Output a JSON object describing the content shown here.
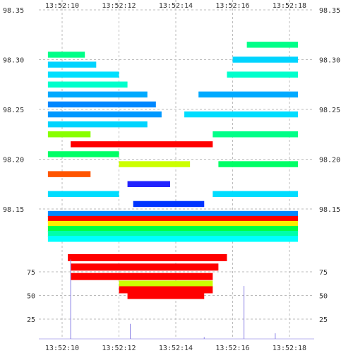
{
  "chart_data": {
    "type": "heatmap",
    "title": "",
    "xlabel": "",
    "ylabel": "",
    "x_ticks": [
      "13:52:10",
      "13:52:12",
      "13:52:14",
      "13:52:16",
      "13:52:18"
    ],
    "y_ticks_price": [
      "98.35",
      "98.30",
      "98.25",
      "98.20",
      "98.15"
    ],
    "y_ticks_volume": [
      "75",
      "50",
      "25"
    ],
    "grid": true,
    "price_range": [
      98.1,
      98.35
    ],
    "volume_range": [
      0,
      100
    ],
    "colors": {
      "grid": "#bbbbbb",
      "trade_line": "#8a82e6",
      "sell_side": "#ff0000",
      "level_palette": [
        "#00b8ff",
        "#00e5ff",
        "#00ffcc",
        "#00ff70",
        "#66ff00",
        "#ccff00",
        "#ffff00",
        "#ffaa00",
        "#ff5500",
        "#ff0000",
        "#3333ff",
        "#9900ff"
      ]
    },
    "heatmap_bands": [
      {
        "price": 98.305,
        "start": "13:52:09.5",
        "end": "13:52:10.8",
        "color": "#00ff88"
      },
      {
        "price": 98.295,
        "start": "13:52:09.5",
        "end": "13:52:11.2",
        "color": "#00d4ff"
      },
      {
        "price": 98.285,
        "start": "13:52:09.5",
        "end": "13:52:12.0",
        "color": "#00e0ff"
      },
      {
        "price": 98.275,
        "start": "13:52:09.5",
        "end": "13:52:12.3",
        "color": "#00ffcc"
      },
      {
        "price": 98.265,
        "start": "13:52:09.5",
        "end": "13:52:13.0",
        "color": "#00aaff"
      },
      {
        "price": 98.255,
        "start": "13:52:09.5",
        "end": "13:52:13.3",
        "color": "#0088ff"
      },
      {
        "price": 98.245,
        "start": "13:52:09.5",
        "end": "13:52:13.5",
        "color": "#0099ff"
      },
      {
        "price": 98.235,
        "start": "13:52:09.5",
        "end": "13:52:13.0",
        "color": "#00d4ff"
      },
      {
        "price": 98.225,
        "start": "13:52:09.5",
        "end": "13:52:11.0",
        "color": "#88ff00"
      },
      {
        "price": 98.215,
        "start": "13:52:10.3",
        "end": "13:52:15.3",
        "color": "#ff0000"
      },
      {
        "price": 98.205,
        "start": "13:52:09.5",
        "end": "13:52:12.0",
        "color": "#00ff66"
      },
      {
        "price": 98.195,
        "start": "13:52:12.0",
        "end": "13:52:14.5",
        "color": "#ccff00"
      },
      {
        "price": 98.185,
        "start": "13:52:09.5",
        "end": "13:52:11.0",
        "color": "#ff5500"
      },
      {
        "price": 98.175,
        "start": "13:52:12.3",
        "end": "13:52:13.8",
        "color": "#2222ff"
      },
      {
        "price": 98.165,
        "start": "13:52:09.5",
        "end": "13:52:12.0",
        "color": "#00ddff"
      },
      {
        "price": 98.155,
        "start": "13:52:12.5",
        "end": "13:52:15.0",
        "color": "#0033ff"
      },
      {
        "price": 98.145,
        "start": "13:52:09.5",
        "end": "13:52:18.3",
        "color": "#0088ff"
      },
      {
        "price": 98.14,
        "start": "13:52:09.5",
        "end": "13:52:18.3",
        "color": "#ff0000"
      },
      {
        "price": 98.135,
        "start": "13:52:09.5",
        "end": "13:52:18.3",
        "color": "#ffee00"
      },
      {
        "price": 98.13,
        "start": "13:52:09.5",
        "end": "13:52:18.3",
        "color": "#00ff44"
      },
      {
        "price": 98.125,
        "start": "13:52:09.5",
        "end": "13:52:18.3",
        "color": "#00ffaa"
      },
      {
        "price": 98.12,
        "start": "13:52:09.5",
        "end": "13:52:18.3",
        "color": "#00ffff"
      },
      {
        "price": 98.315,
        "start": "13:52:16.5",
        "end": "13:52:18.3",
        "color": "#00ff88"
      },
      {
        "price": 98.3,
        "start": "13:52:16.0",
        "end": "13:52:18.3",
        "color": "#00d4ff"
      },
      {
        "price": 98.285,
        "start": "13:52:15.8",
        "end": "13:52:18.3",
        "color": "#00ffcc"
      },
      {
        "price": 98.265,
        "start": "13:52:14.8",
        "end": "13:52:18.3",
        "color": "#00aaff"
      },
      {
        "price": 98.245,
        "start": "13:52:14.3",
        "end": "13:52:18.3",
        "color": "#00ddff"
      },
      {
        "price": 98.225,
        "start": "13:52:15.3",
        "end": "13:52:18.3",
        "color": "#00ff88"
      },
      {
        "price": 98.195,
        "start": "13:52:15.5",
        "end": "13:52:18.3",
        "color": "#00ff66"
      },
      {
        "price": 98.165,
        "start": "13:52:15.3",
        "end": "13:52:18.3",
        "color": "#00ddff"
      }
    ],
    "volume_bars": [
      {
        "volume": 90,
        "start": "13:52:10.2",
        "end": "13:52:15.8",
        "color": "#ff0000"
      },
      {
        "volume": 80,
        "start": "13:52:10.3",
        "end": "13:52:15.5",
        "color": "#ff0000"
      },
      {
        "volume": 70,
        "start": "13:52:10.3",
        "end": "13:52:15.3",
        "color": "#ff0000"
      },
      {
        "volume": 62,
        "start": "13:52:12.0",
        "end": "13:52:15.3",
        "color": "#ccff00"
      },
      {
        "volume": 56,
        "start": "13:52:12.0",
        "end": "13:52:15.3",
        "color": "#ff0000"
      },
      {
        "volume": 50,
        "start": "13:52:12.3",
        "end": "13:52:15.0",
        "color": "#ff0000"
      }
    ],
    "trade_spikes": [
      {
        "time": "13:52:10.3",
        "volume": 88
      },
      {
        "time": "13:52:12.4",
        "volume": 20
      },
      {
        "time": "13:52:15.0",
        "volume": 6
      },
      {
        "time": "13:52:16.4",
        "volume": 60
      },
      {
        "time": "13:52:17.5",
        "volume": 10
      }
    ]
  }
}
